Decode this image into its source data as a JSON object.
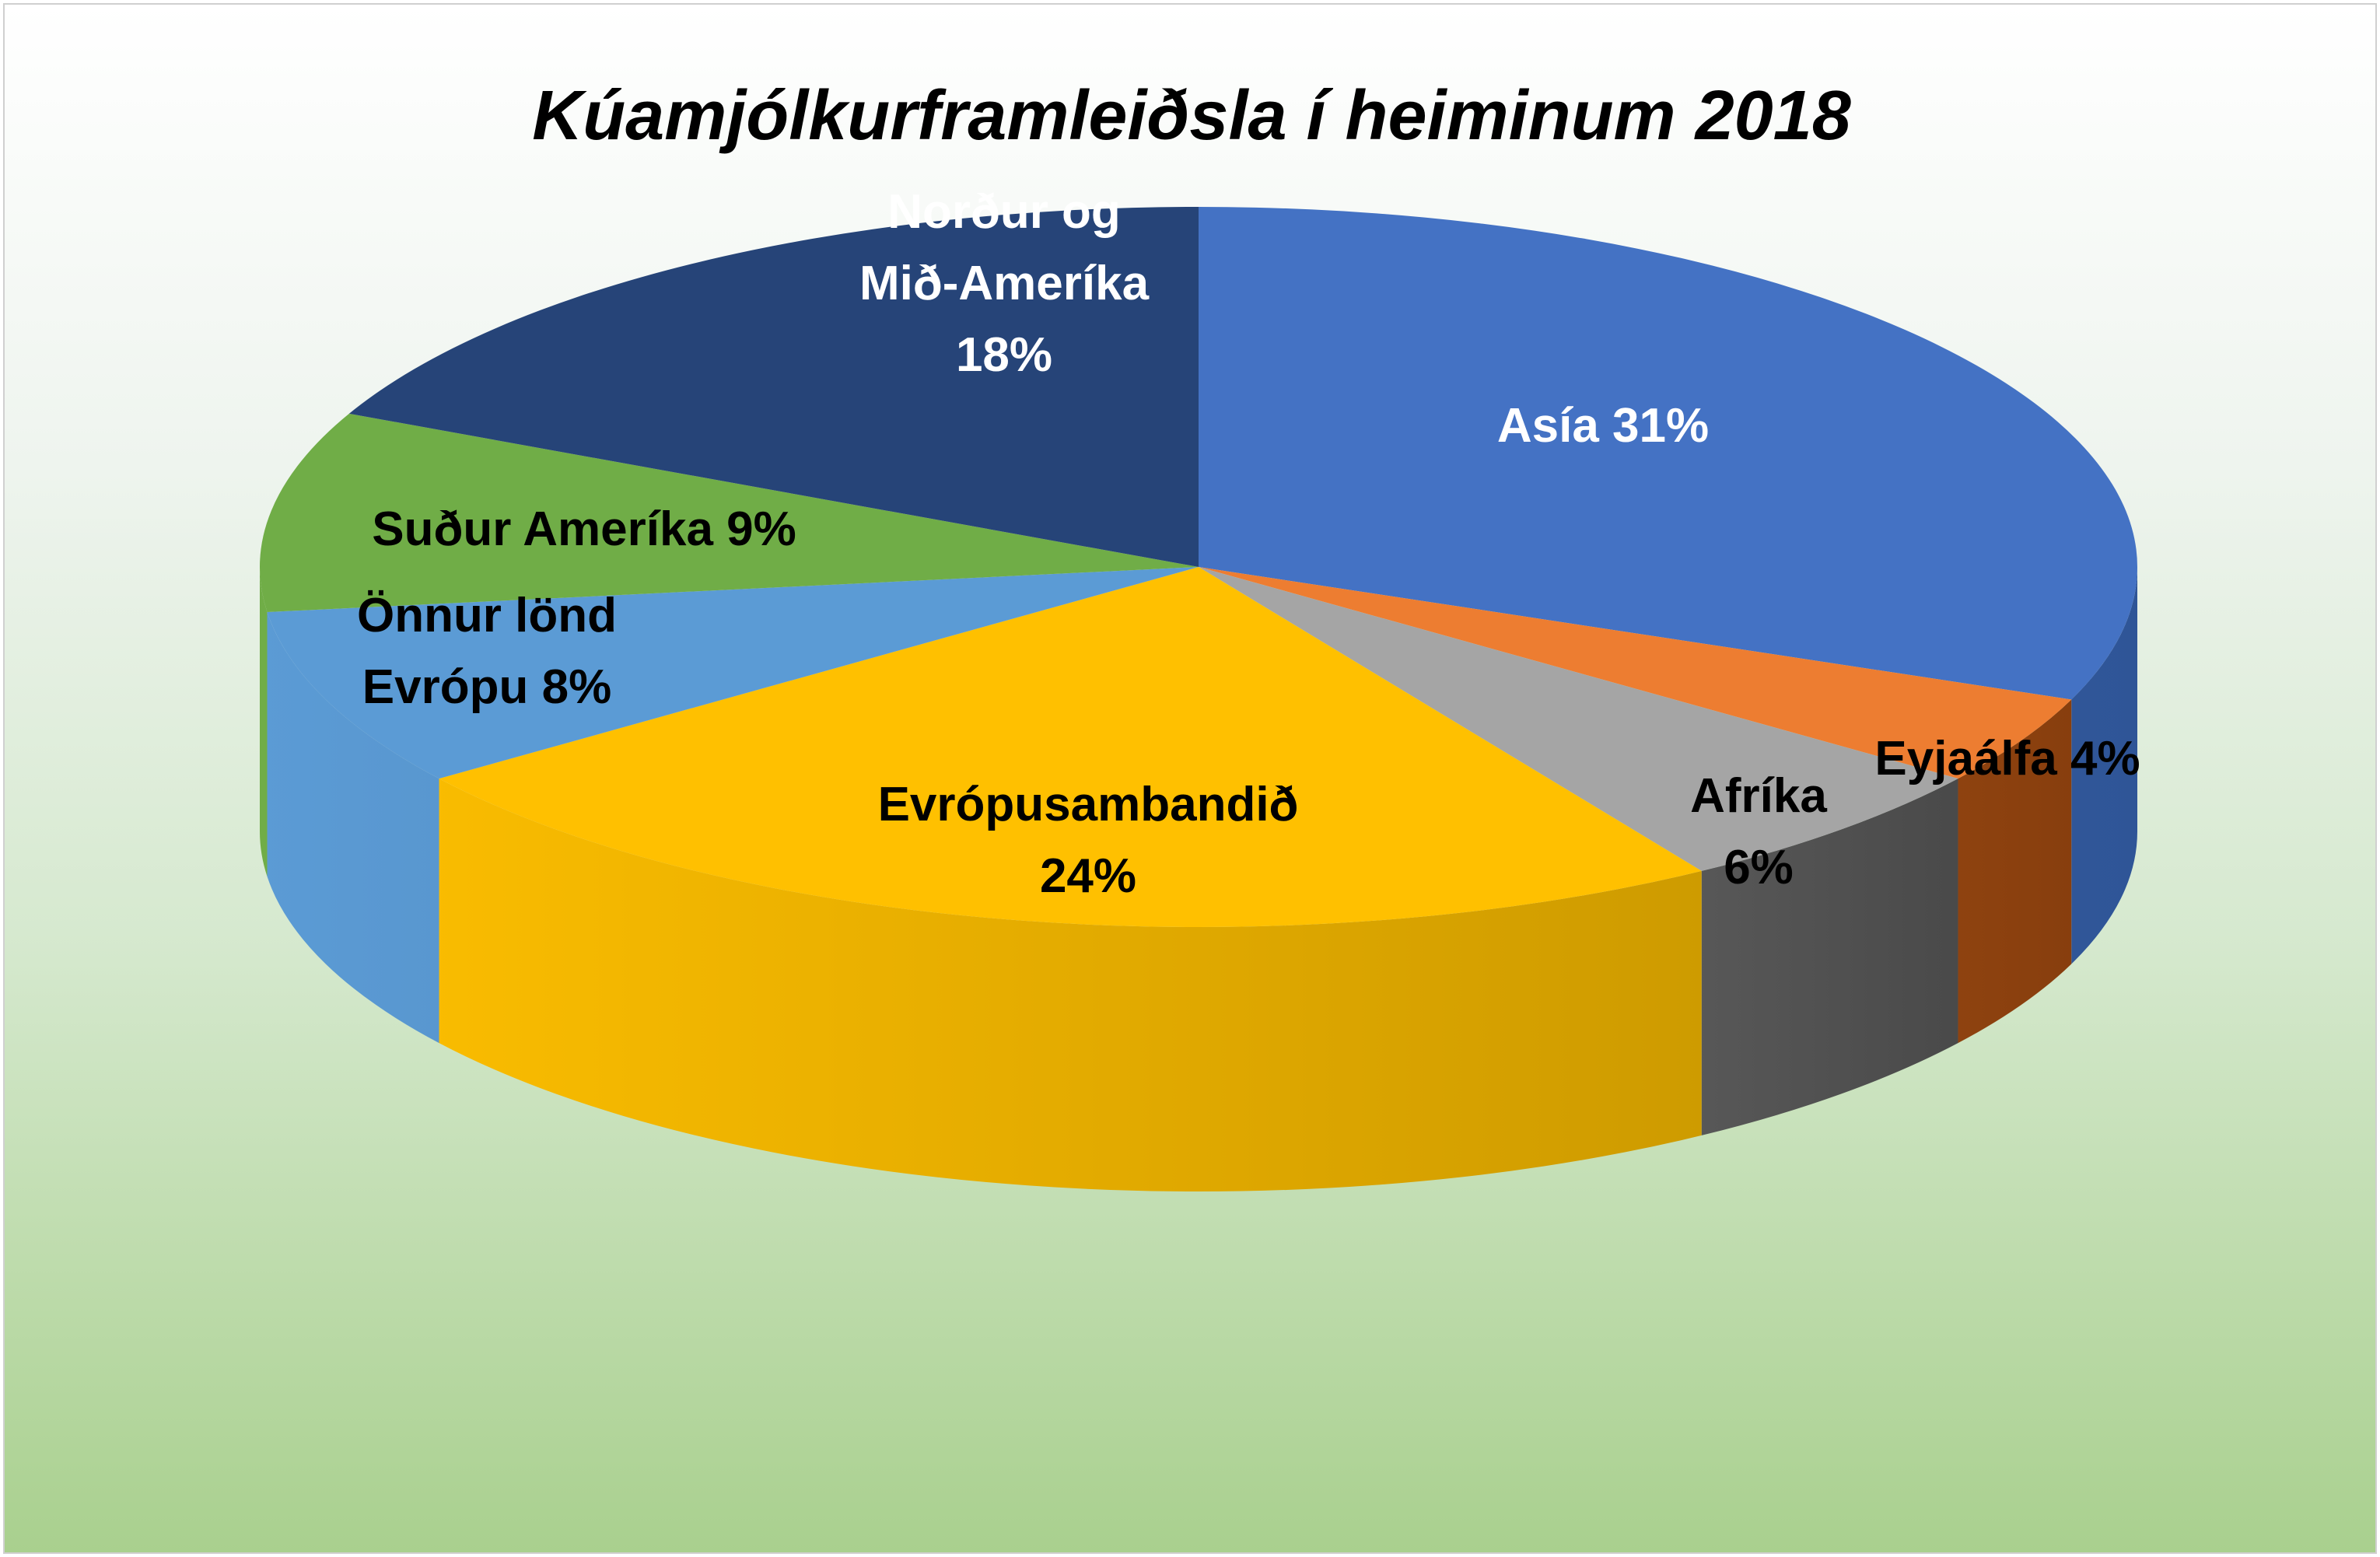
{
  "chart_data": {
    "type": "pie",
    "title": "Kúamjólkurframleiðsla í heiminum 2018",
    "slices": [
      {
        "label": [
          "Asía 31%"
        ],
        "value": 31,
        "color": "#4472c4",
        "side_color": "#2f5597",
        "text_color": "#ffffff"
      },
      {
        "label": [
          "Eyjaálfa 4%"
        ],
        "value": 4,
        "color": "#ed7d31",
        "side_color": "#843c0c",
        "text_color": "#000000"
      },
      {
        "label": [
          "Afríka",
          "6%"
        ],
        "value": 6,
        "color": "#a5a5a5",
        "side_color": "#404040",
        "text_color": "#000000"
      },
      {
        "label": [
          "Evrópusambandið",
          "24%"
        ],
        "value": 24,
        "color": "#ffc000",
        "side_color": "#bf9000",
        "text_color": "#000000"
      },
      {
        "label": [
          "Önnur lönd",
          "Evrópu 8%"
        ],
        "value": 8,
        "color": "#5b9bd5",
        "side_color": "#41719c",
        "text_color": "#000000"
      },
      {
        "label": [
          "Suður Ameríka 9%"
        ],
        "value": 9,
        "color": "#70ad47",
        "side_color": "#507e32",
        "text_color": "#000000"
      },
      {
        "label": [
          "Norður og",
          "Mið-Ameríka",
          "18%"
        ],
        "value": 18,
        "color": "#264478",
        "side_color": "#1a2f54",
        "text_color": "#ffffff"
      }
    ],
    "style": "3d-pie",
    "legend": "none"
  }
}
